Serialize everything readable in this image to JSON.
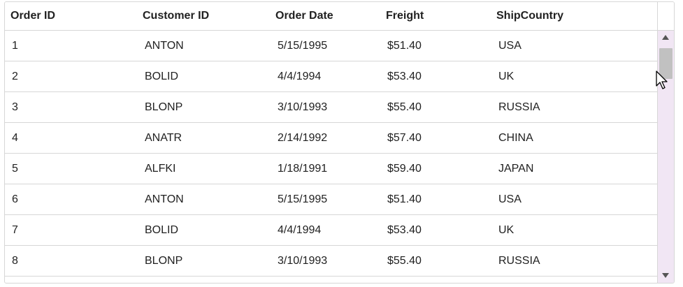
{
  "columns": {
    "order_id": "Order ID",
    "customer_id": "Customer ID",
    "order_date": "Order Date",
    "freight": "Freight",
    "ship_country": "ShipCountry"
  },
  "rows": [
    {
      "order_id": "1",
      "customer_id": "ANTON",
      "order_date": "5/15/1995",
      "freight": "$51.40",
      "ship_country": "USA"
    },
    {
      "order_id": "2",
      "customer_id": "BOLID",
      "order_date": "4/4/1994",
      "freight": "$53.40",
      "ship_country": "UK"
    },
    {
      "order_id": "3",
      "customer_id": "BLONP",
      "order_date": "3/10/1993",
      "freight": "$55.40",
      "ship_country": "RUSSIA"
    },
    {
      "order_id": "4",
      "customer_id": "ANATR",
      "order_date": "2/14/1992",
      "freight": "$57.40",
      "ship_country": "CHINA"
    },
    {
      "order_id": "5",
      "customer_id": "ALFKI",
      "order_date": "1/18/1991",
      "freight": "$59.40",
      "ship_country": "JAPAN"
    },
    {
      "order_id": "6",
      "customer_id": "ANTON",
      "order_date": "5/15/1995",
      "freight": "$51.40",
      "ship_country": "USA"
    },
    {
      "order_id": "7",
      "customer_id": "BOLID",
      "order_date": "4/4/1994",
      "freight": "$53.40",
      "ship_country": "UK"
    },
    {
      "order_id": "8",
      "customer_id": "BLONP",
      "order_date": "3/10/1993",
      "freight": "$55.40",
      "ship_country": "RUSSIA"
    }
  ],
  "icons": {
    "scroll_up": "scroll-up-arrow-icon",
    "scroll_down": "scroll-down-arrow-icon",
    "cursor": "mouse-pointer-icon"
  },
  "colors": {
    "border": "#d7d7d7",
    "scroll_track": "#f1e6f4",
    "scroll_thumb": "#c1c1c1",
    "text": "#212121"
  }
}
